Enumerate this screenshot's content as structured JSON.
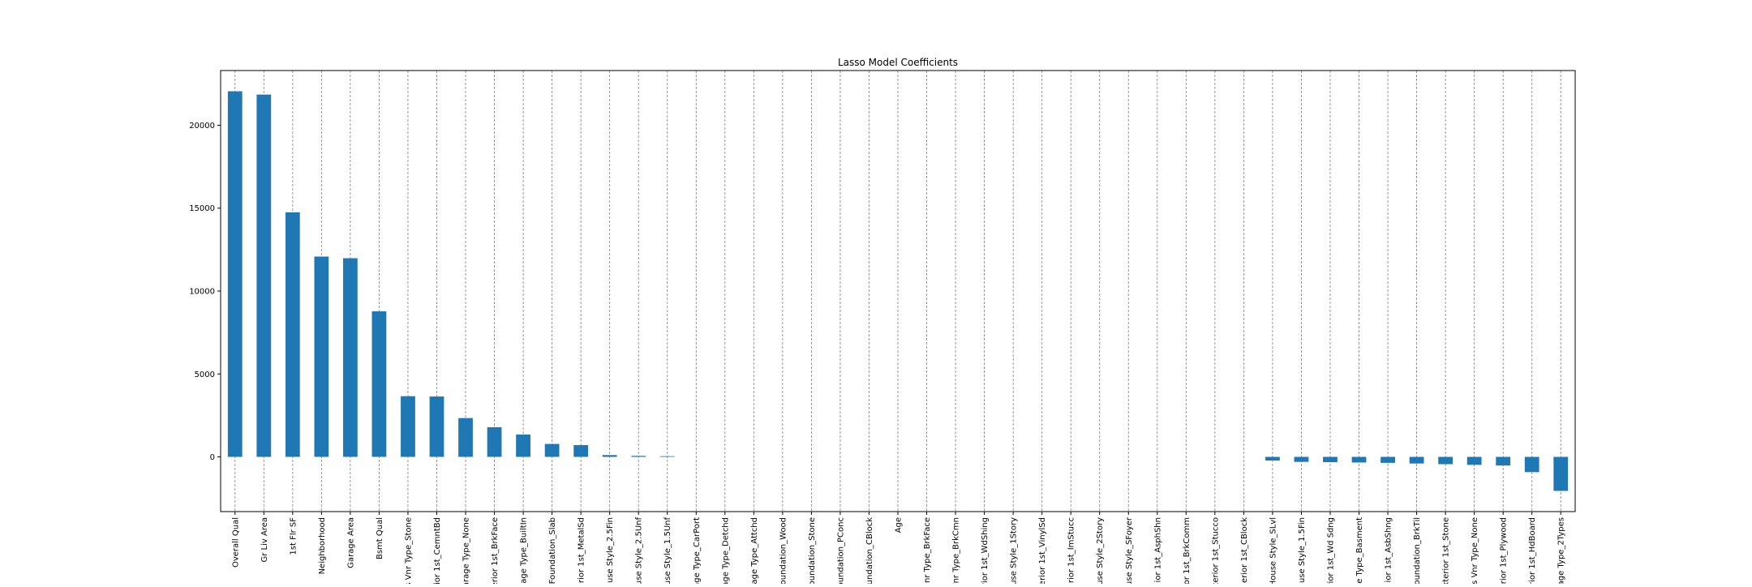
{
  "chart_data": {
    "type": "bar",
    "title": "Lasso Model Coefficients",
    "xlabel": "",
    "ylabel": "",
    "ylim": [
      -3300,
      23300
    ],
    "yticks": [
      0,
      5000,
      10000,
      15000,
      20000
    ],
    "grid": "x-dashed",
    "bar_color": "#1f77b4",
    "categories": [
      "Overall Qual",
      "Gr Liv Area",
      "1st Flr SF",
      "Neighborhood",
      "Garage Area",
      "Bsmt Qual",
      "s Vnr Type_Stone",
      "rior 1st_CemntBd",
      "arage Type_None",
      "erior 1st_BrkFace",
      "age Type_BuiltIn",
      "Foundation_Slab",
      "rior 1st_MetalSd",
      "use Style_2.5Fin",
      "use Style_2.5Unf",
      "use Style_1.5Unf",
      "age Type_CarPort",
      "age Type_Detchd",
      "age Type_Attchd",
      "oundation_Wood",
      "oundation_Stone",
      "oundation_PConc",
      "oundation_CBlock",
      "Age",
      "nr Type_BrkFace",
      "Vnr Type_BrkCmn",
      "rior 1st_WdShing",
      "use Style_1Story",
      "erior 1st_VinylSd",
      "rior 1st_ImStucc",
      "use Style_2Story",
      "use Style_SFoyer",
      "ior 1st_AsphShn",
      "or 1st_BrkComm",
      "terior 1st_Stucco",
      "erior 1st_CBlock",
      "House Style_SLvl",
      "use Style_1.5Fin",
      "rior 1st_Wd Sdng",
      "e Type_Basment",
      "ior 1st_AsbShng",
      "oundation_BrkTil",
      "xterior 1st_Stone",
      "s Vnr Type_None",
      "rior 1st_Plywood",
      "rior 1st_HdBoard",
      "age Type_2Types"
    ],
    "values": [
      22050,
      21850,
      14750,
      12080,
      11980,
      8780,
      3660,
      3640,
      2340,
      1790,
      1350,
      780,
      710,
      110,
      60,
      40,
      0,
      0,
      0,
      0,
      0,
      0,
      0,
      0,
      0,
      0,
      0,
      0,
      0,
      0,
      0,
      0,
      0,
      0,
      0,
      0,
      -220,
      -300,
      -320,
      -340,
      -360,
      -400,
      -440,
      -480,
      -520,
      -920,
      -2050
    ]
  }
}
